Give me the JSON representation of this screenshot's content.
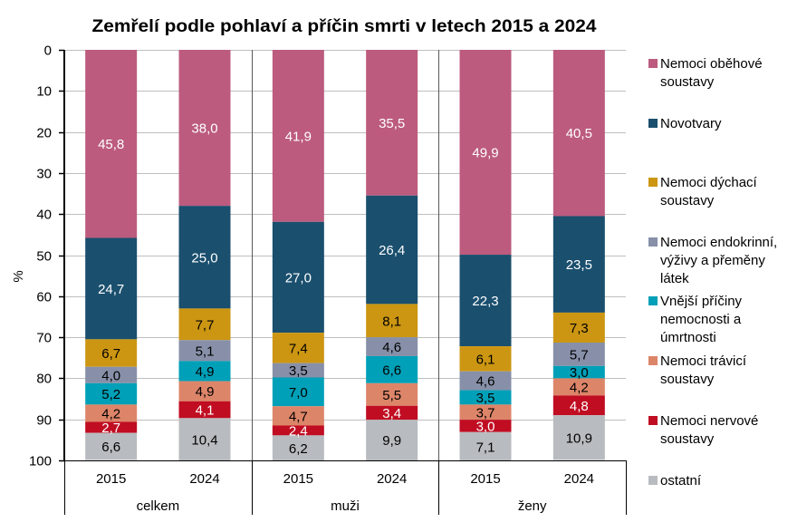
{
  "chart_data": {
    "type": "bar",
    "stacked": true,
    "title": "Zemřelí podle pohlaví a příčin smrti v letech 2015 a 2024",
    "xlabel": "",
    "ylabel": "%",
    "ylim": [
      0,
      100
    ],
    "y_inverted": true,
    "yticks": [
      0,
      10,
      20,
      30,
      40,
      50,
      60,
      70,
      80,
      90,
      100
    ],
    "grid": "horizontal",
    "legend_position": "right",
    "decimal_separator": ",",
    "groups": [
      {
        "label": "celkem",
        "categories": [
          "2015",
          "2024"
        ]
      },
      {
        "label": "muži",
        "categories": [
          "2015",
          "2024"
        ]
      },
      {
        "label": "ženy",
        "categories": [
          "2015",
          "2024"
        ]
      }
    ],
    "categories": [
      "2015",
      "2024",
      "2015",
      "2024",
      "2015",
      "2024"
    ],
    "series": [
      {
        "name": "Nemoci oběhové soustavy",
        "legend_lines": [
          "Nemoci oběhové",
          "soustavy"
        ],
        "color": "#BC5B7E",
        "label_color": "#FFFFFF",
        "values": [
          45.8,
          38.0,
          41.9,
          35.5,
          49.9,
          40.5
        ]
      },
      {
        "name": "Novotvary",
        "legend_lines": [
          "Novotvary"
        ],
        "color": "#1A4F6E",
        "label_color": "#FFFFFF",
        "values": [
          24.7,
          25.0,
          27.0,
          26.4,
          22.3,
          23.5
        ]
      },
      {
        "name": "Nemoci dýchací soustavy",
        "legend_lines": [
          "Nemoci dýchací",
          "soustavy"
        ],
        "color": "#CC9613",
        "label_color": "#000000",
        "values": [
          6.7,
          7.7,
          7.4,
          8.1,
          6.1,
          7.3
        ]
      },
      {
        "name": "Nemoci endokrinní, výživy a přeměny látek",
        "legend_lines": [
          "Nemoci endokrinní,",
          "výživy a přeměny",
          "látek"
        ],
        "color": "#8790A8",
        "label_color": "#000000",
        "values": [
          4.0,
          5.1,
          3.5,
          4.6,
          4.6,
          5.7
        ]
      },
      {
        "name": "Vnější příčiny nemocnosti a úmrtnosti",
        "legend_lines": [
          "Vnější příčiny",
          "nemocnosti a",
          "úmrtnosti"
        ],
        "color": "#00A0B8",
        "label_color": "#000000",
        "values": [
          5.2,
          4.9,
          7.0,
          6.6,
          3.5,
          3.0
        ]
      },
      {
        "name": "Nemoci trávicí soustavy",
        "legend_lines": [
          "Nemoci trávicí",
          "soustavy"
        ],
        "color": "#DD8569",
        "label_color": "#000000",
        "values": [
          4.2,
          4.9,
          4.7,
          5.5,
          3.7,
          4.2
        ]
      },
      {
        "name": "Nemoci nervové soustavy",
        "legend_lines": [
          "Nemoci nervové",
          "soustavy"
        ],
        "color": "#C00D22",
        "label_color": "#FFFFFF",
        "values": [
          2.7,
          4.1,
          2.4,
          3.4,
          3.0,
          4.8
        ]
      },
      {
        "name": "ostatní",
        "legend_lines": [
          "ostatní"
        ],
        "color": "#B8BBBF",
        "label_color": "#000000",
        "values": [
          6.6,
          10.4,
          6.2,
          9.9,
          7.1,
          10.9
        ]
      }
    ]
  }
}
